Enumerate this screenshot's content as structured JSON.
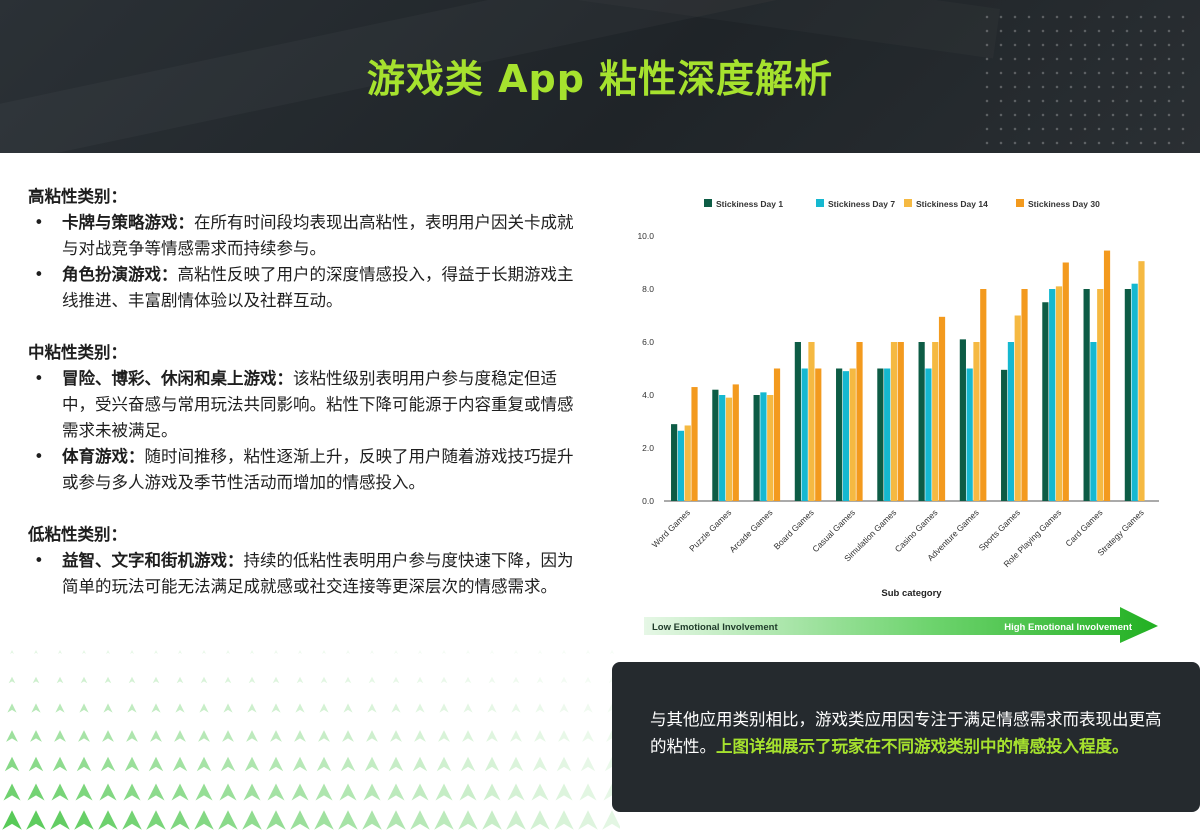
{
  "title": "游戏类 App 粘性深度解析",
  "sections": [
    {
      "heading": "高粘性类别：",
      "items": [
        {
          "bold": "卡牌与策略游戏：",
          "text": "在所有时间段均表现出高粘性，表明用户因关卡成就与对战竞争等情感需求而持续参与。"
        },
        {
          "bold": "角色扮演游戏：",
          "text": "高粘性反映了用户的深度情感投入，得益于长期游戏主线推进、丰富剧情体验以及社群互动。"
        }
      ]
    },
    {
      "heading": "中粘性类别：",
      "items": [
        {
          "bold": "冒险、博彩、休闲和桌上游戏：",
          "text": "该粘性级别表明用户参与度稳定但适中，受兴奋感与常用玩法共同影响。粘性下降可能源于内容重复或情感需求未被满足。"
        },
        {
          "bold": "体育游戏：",
          "text": "随时间推移，粘性逐渐上升，反映了用户随着游戏技巧提升或参与多人游戏及季节性活动而增加的情感投入。"
        }
      ]
    },
    {
      "heading": "低粘性类别：",
      "items": [
        {
          "bold": "益智、文字和街机游戏：",
          "text": "持续的低粘性表明用户参与度快速下降，因为简单的玩法可能无法满足成就感或社交连接等更深层次的情感需求。"
        }
      ]
    }
  ],
  "bullet_char": "•",
  "chart_data": {
    "type": "bar",
    "xlabel": "Sub category",
    "ylabel": "",
    "ylim": [
      0,
      10
    ],
    "yticks": [
      "0.0",
      "2.0",
      "4.0",
      "6.0",
      "8.0",
      "10.0"
    ],
    "legend_position": "top",
    "categories": [
      "Word Games",
      "Puzzle Games",
      "Arcade Games",
      "Board Games",
      "Casual Games",
      "Simulation Games",
      "Casino Games",
      "Adventure Games",
      "Sports Games",
      "Role Playing Games",
      "Card Games",
      "Strategy Games"
    ],
    "series": [
      {
        "name": "Stickiness Day 1",
        "color": "#0d5c45",
        "values": [
          2.9,
          4.2,
          4.0,
          6.0,
          5.0,
          5.0,
          6.0,
          6.1,
          4.95,
          7.5,
          8.0,
          8.0
        ]
      },
      {
        "name": "Stickiness Day 7",
        "color": "#15b8d0",
        "values": [
          2.65,
          4.0,
          4.1,
          5.0,
          4.9,
          5.0,
          5.0,
          5.0,
          6.0,
          8.0,
          6.0,
          8.2
        ]
      },
      {
        "name": "Stickiness Day 14",
        "color": "#f5b942",
        "values": [
          2.85,
          3.9,
          4.0,
          6.0,
          5.0,
          6.0,
          6.0,
          6.0,
          7.0,
          8.1,
          8.0,
          9.05
        ]
      },
      {
        "name": "Stickiness Day 30",
        "color": "#f39a1e",
        "values": [
          4.3,
          4.4,
          5.0,
          5.0,
          6.0,
          6.0,
          6.95,
          8.0,
          8.0,
          9.0,
          9.45,
          0
        ]
      }
    ]
  },
  "involvement_bar": {
    "low_label": "Low Emotional Involvement",
    "high_label": "High Emotional Involvement"
  },
  "summary": {
    "text": "与其他应用类别相比，游戏类应用因专注于满足情感需求而表现出更高的粘性。",
    "highlight": "上图详细展示了玩家在不同游戏类别中的情感投入程度。"
  },
  "colors": {
    "accent": "#a6e22e",
    "header_bg": "#252a2e",
    "arrow_green": "#2ebd2e"
  }
}
